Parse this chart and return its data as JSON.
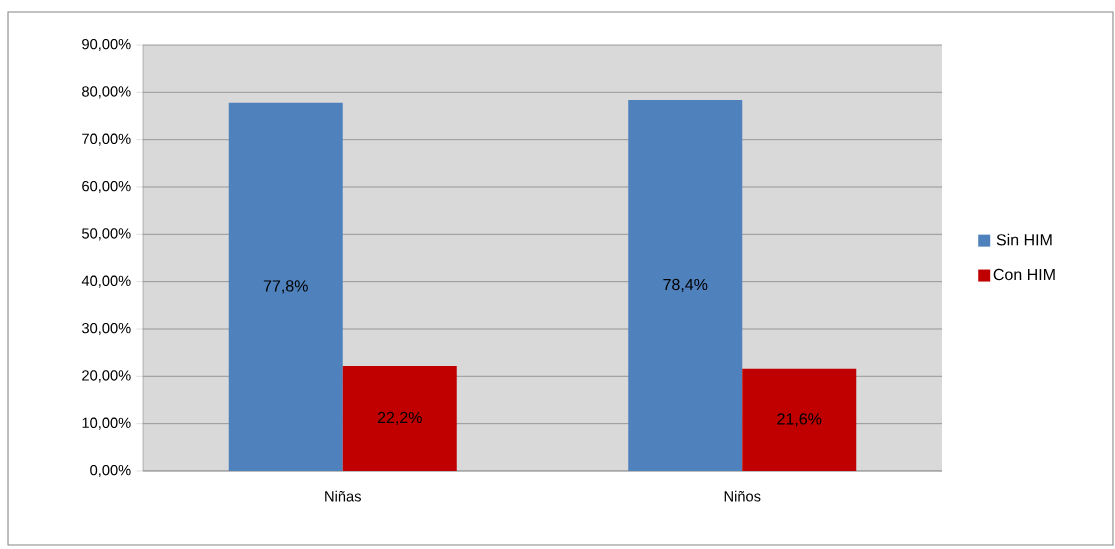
{
  "chart_data": {
    "type": "bar",
    "categories": [
      "Niñas",
      "Niños"
    ],
    "series": [
      {
        "name": "Sin HIM",
        "color": "#4f81bd",
        "values": [
          77.8,
          78.4
        ],
        "value_labels": [
          "77,8%",
          "78,4%"
        ]
      },
      {
        "name": "Con HIM",
        "color": "#c00000",
        "values": [
          22.2,
          21.6
        ],
        "value_labels": [
          "22,2%",
          "21,6%"
        ]
      }
    ],
    "ylim": [
      0,
      90
    ],
    "yticks": [
      {
        "value": 0,
        "label": "0,00%"
      },
      {
        "value": 10,
        "label": "10,00%"
      },
      {
        "value": 20,
        "label": "20,00%"
      },
      {
        "value": 30,
        "label": "30,00%"
      },
      {
        "value": 40,
        "label": "40,00%"
      },
      {
        "value": 50,
        "label": "50,00%"
      },
      {
        "value": 60,
        "label": "60,00%"
      },
      {
        "value": 70,
        "label": "70,00%"
      },
      {
        "value": 80,
        "label": "80,00%"
      },
      {
        "value": 90,
        "label": "90,00%"
      }
    ],
    "grid": "y",
    "legend": "right"
  }
}
